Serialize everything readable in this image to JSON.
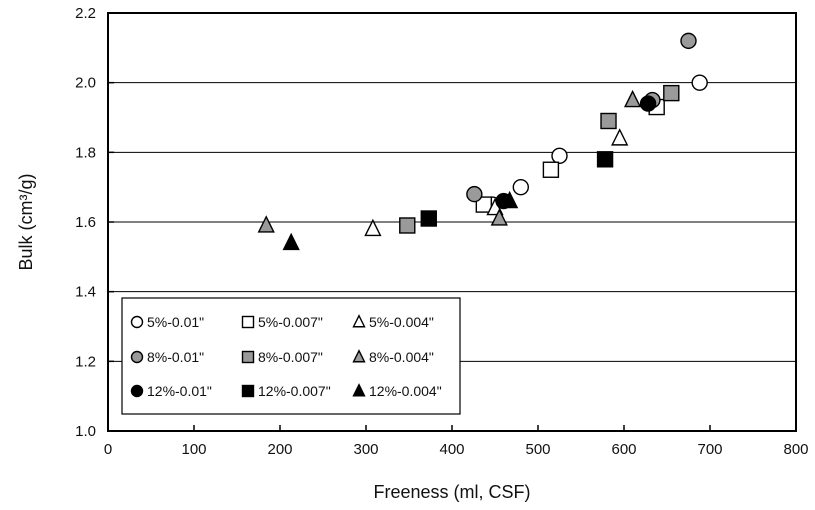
{
  "chart_data": {
    "type": "scatter",
    "title": "",
    "xlabel": "Freeness (ml, CSF)",
    "ylabel": "Bulk (cm³/g)",
    "xlim": [
      0,
      800
    ],
    "ylim": [
      1.0,
      2.2
    ],
    "xticks": [
      0,
      100,
      200,
      300,
      400,
      500,
      600,
      700,
      800
    ],
    "yticks": [
      1.0,
      1.2,
      1.4,
      1.6,
      1.8,
      2.0,
      2.2
    ],
    "xtick_labels": [
      "0",
      "100",
      "200",
      "300",
      "400",
      "500",
      "600",
      "700",
      "800"
    ],
    "ytick_labels": [
      "1.0",
      "1.2",
      "1.4",
      "1.6",
      "1.8",
      "2.0",
      "2.2"
    ],
    "grid": "horizontal",
    "legend_position": "bottom-left inside",
    "series": [
      {
        "name": "5%-0.01\"",
        "marker": "circle",
        "fill": "#ffffff",
        "points": [
          [
            688,
            2.0
          ],
          [
            525,
            1.79
          ],
          [
            480,
            1.7
          ],
          [
            447,
            1.65
          ]
        ]
      },
      {
        "name": "5%-0.007\"",
        "marker": "square",
        "fill": "#ffffff",
        "points": [
          [
            638,
            1.93
          ],
          [
            515,
            1.75
          ],
          [
            437,
            1.65
          ]
        ]
      },
      {
        "name": "5%-0.004\"",
        "marker": "triangle",
        "fill": "#ffffff",
        "points": [
          [
            595,
            1.84
          ],
          [
            308,
            1.58
          ],
          [
            450,
            1.64
          ]
        ]
      },
      {
        "name": "8%-0.01\"",
        "marker": "circle",
        "fill": "#9a9a9a",
        "points": [
          [
            675,
            2.12
          ],
          [
            426,
            1.68
          ],
          [
            633,
            1.95
          ]
        ]
      },
      {
        "name": "8%-0.007\"",
        "marker": "square",
        "fill": "#9a9a9a",
        "points": [
          [
            655,
            1.97
          ],
          [
            582,
            1.89
          ],
          [
            348,
            1.59
          ]
        ]
      },
      {
        "name": "8%-0.004\"",
        "marker": "triangle",
        "fill": "#9a9a9a",
        "points": [
          [
            610,
            1.95
          ],
          [
            184,
            1.59
          ],
          [
            455,
            1.61
          ]
        ]
      },
      {
        "name": "12%-0.01\"",
        "marker": "circle",
        "fill": "#000000",
        "points": [
          [
            628,
            1.94
          ],
          [
            460,
            1.66
          ]
        ]
      },
      {
        "name": "12%-0.007\"",
        "marker": "square",
        "fill": "#000000",
        "points": [
          [
            578,
            1.78
          ],
          [
            373,
            1.61
          ]
        ]
      },
      {
        "name": "12%-0.004\"",
        "marker": "triangle",
        "fill": "#000000",
        "points": [
          [
            213,
            1.54
          ],
          [
            467,
            1.66
          ]
        ]
      }
    ]
  }
}
